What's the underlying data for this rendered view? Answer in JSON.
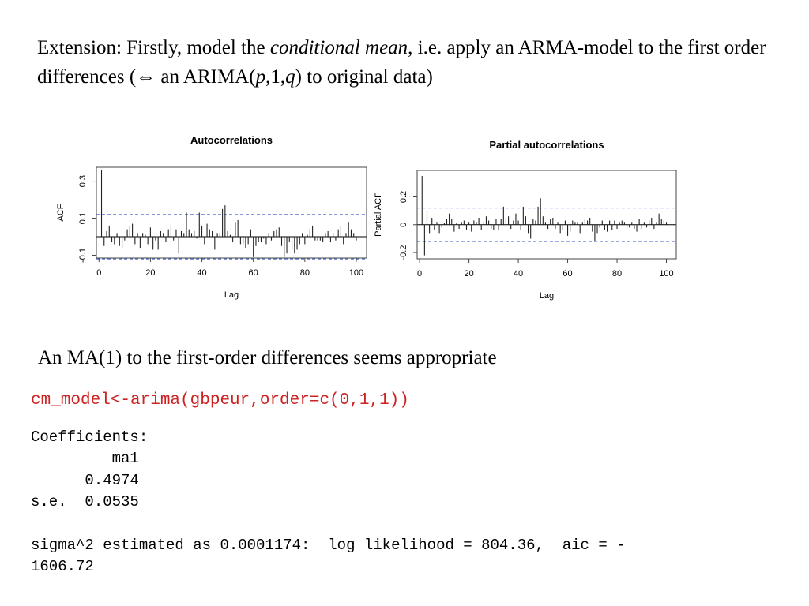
{
  "intro": {
    "prefix": "Extension: Firstly, model the ",
    "italic1": "conditional mean",
    "mid1": ", i.e. apply an ARMA-model to the first order differences (",
    "symbol": "⇔",
    "mid2": " an ARIMA(",
    "p": "p",
    "comma1": ",1,",
    "q": "q",
    "suffix": ") to original data)"
  },
  "subtext": "An MA(1) to the first-order differences seems appropriate",
  "code": {
    "command": "cm_model<-arima(gbpeur,order=c(0,1,1))",
    "output": "Coefficients:\n         ma1\n      0.4974\ns.e.  0.0535\n\nsigma^2 estimated as 0.0001174:  log likelihood = 804.36,  aic = -\n1606.72"
  },
  "chart_data": [
    {
      "type": "bar",
      "title": "Autocorrelations",
      "xlabel": "Lag",
      "ylabel": "ACF",
      "xlim": [
        -1,
        104
      ],
      "ylim": [
        -0.115,
        0.375
      ],
      "xticks": [
        0,
        20,
        40,
        60,
        80,
        100
      ],
      "yticks": [
        -0.1,
        0.1,
        0.3
      ],
      "conf_level": 0.12,
      "colors": {
        "bars": "#222222",
        "conf": "#3d5bc8",
        "axis": "#444444"
      },
      "x": [
        1,
        2,
        3,
        4,
        5,
        6,
        7,
        8,
        9,
        10,
        11,
        12,
        13,
        14,
        15,
        16,
        17,
        18,
        19,
        20,
        21,
        22,
        23,
        24,
        25,
        26,
        27,
        28,
        29,
        30,
        31,
        32,
        33,
        34,
        35,
        36,
        37,
        38,
        39,
        40,
        41,
        42,
        43,
        44,
        45,
        46,
        47,
        48,
        49,
        50,
        51,
        52,
        53,
        54,
        55,
        56,
        57,
        58,
        59,
        60,
        61,
        62,
        63,
        64,
        65,
        66,
        67,
        68,
        69,
        70,
        71,
        72,
        73,
        74,
        75,
        76,
        77,
        78,
        79,
        80,
        81,
        82,
        83,
        84,
        85,
        86,
        87,
        88,
        89,
        90,
        91,
        92,
        93,
        94,
        95,
        96,
        97,
        98,
        99,
        100
      ],
      "values": [
        0.36,
        -0.05,
        0.03,
        0.06,
        -0.03,
        -0.04,
        0.02,
        -0.05,
        -0.06,
        -0.02,
        0.04,
        0.06,
        0.07,
        -0.04,
        0.02,
        -0.06,
        0.02,
        0.01,
        -0.04,
        0.05,
        -0.07,
        -0.02,
        -0.07,
        0.03,
        0.02,
        -0.03,
        0.04,
        0.06,
        -0.02,
        0.04,
        -0.09,
        0.03,
        0.02,
        0.13,
        0.04,
        0.02,
        0.03,
        -0.01,
        0.13,
        0.06,
        -0.04,
        0.07,
        0.04,
        0.03,
        -0.07,
        0.02,
        0.02,
        0.15,
        0.17,
        0.03,
        0.01,
        -0.03,
        0.08,
        0.09,
        -0.04,
        -0.04,
        -0.06,
        -0.04,
        0.04,
        -0.11,
        -0.05,
        -0.03,
        -0.03,
        -0.01,
        -0.04,
        0.02,
        -0.02,
        0.03,
        0.04,
        0.05,
        -0.05,
        -0.11,
        -0.09,
        -0.03,
        -0.07,
        -0.09,
        -0.07,
        -0.04,
        0.02,
        -0.04,
        0.01,
        0.04,
        0.06,
        -0.02,
        -0.02,
        -0.02,
        -0.03,
        0.02,
        0.03,
        -0.03,
        0.02,
        -0.02,
        0.04,
        0.06,
        -0.04,
        0.02,
        0.08,
        0.04,
        0.02,
        -0.02
      ]
    },
    {
      "type": "bar",
      "title": "Partial autocorrelations",
      "xlabel": "Lag",
      "ylabel": "Partial ACF",
      "xlim": [
        -1,
        104
      ],
      "ylim": [
        -0.245,
        0.39
      ],
      "xticks": [
        0,
        20,
        40,
        60,
        80,
        100
      ],
      "yticks": [
        -0.2,
        0.0,
        0.2
      ],
      "conf_level": 0.12,
      "colors": {
        "bars": "#222222",
        "conf": "#3d5bc8",
        "axis": "#444444"
      },
      "x": [
        1,
        2,
        3,
        4,
        5,
        6,
        7,
        8,
        9,
        10,
        11,
        12,
        13,
        14,
        15,
        16,
        17,
        18,
        19,
        20,
        21,
        22,
        23,
        24,
        25,
        26,
        27,
        28,
        29,
        30,
        31,
        32,
        33,
        34,
        35,
        36,
        37,
        38,
        39,
        40,
        41,
        42,
        43,
        44,
        45,
        46,
        47,
        48,
        49,
        50,
        51,
        52,
        53,
        54,
        55,
        56,
        57,
        58,
        59,
        60,
        61,
        62,
        63,
        64,
        65,
        66,
        67,
        68,
        69,
        70,
        71,
        72,
        73,
        74,
        75,
        76,
        77,
        78,
        79,
        80,
        81,
        82,
        83,
        84,
        85,
        86,
        87,
        88,
        89,
        90,
        91,
        92,
        93,
        94,
        95,
        96,
        97,
        98,
        99,
        100
      ],
      "values": [
        0.35,
        -0.22,
        0.1,
        -0.06,
        0.05,
        -0.04,
        0.02,
        -0.06,
        -0.02,
        0.01,
        0.04,
        0.08,
        0.04,
        -0.05,
        0.01,
        -0.03,
        0.02,
        0.03,
        -0.04,
        0.02,
        -0.05,
        0.03,
        0.02,
        0.05,
        -0.04,
        0.02,
        0.06,
        0.03,
        -0.03,
        -0.04,
        0.04,
        -0.04,
        0.04,
        0.13,
        0.05,
        0.06,
        -0.03,
        0.03,
        0.08,
        0.03,
        -0.04,
        0.13,
        0.06,
        -0.06,
        -0.1,
        0.04,
        0.03,
        0.13,
        0.19,
        0.06,
        0.02,
        -0.03,
        0.04,
        0.05,
        -0.03,
        0.02,
        -0.06,
        -0.04,
        0.03,
        -0.08,
        -0.05,
        0.03,
        0.02,
        0.02,
        -0.06,
        0.02,
        0.04,
        0.03,
        0.05,
        -0.05,
        -0.12,
        -0.06,
        -0.02,
        0.03,
        -0.04,
        -0.05,
        0.03,
        -0.04,
        0.03,
        -0.03,
        0.02,
        0.03,
        0.02,
        -0.03,
        -0.02,
        0.02,
        -0.03,
        -0.05,
        0.04,
        -0.03,
        0.02,
        -0.02,
        0.03,
        0.05,
        -0.03,
        0.02,
        0.08,
        0.04,
        0.03,
        0.02
      ]
    }
  ]
}
